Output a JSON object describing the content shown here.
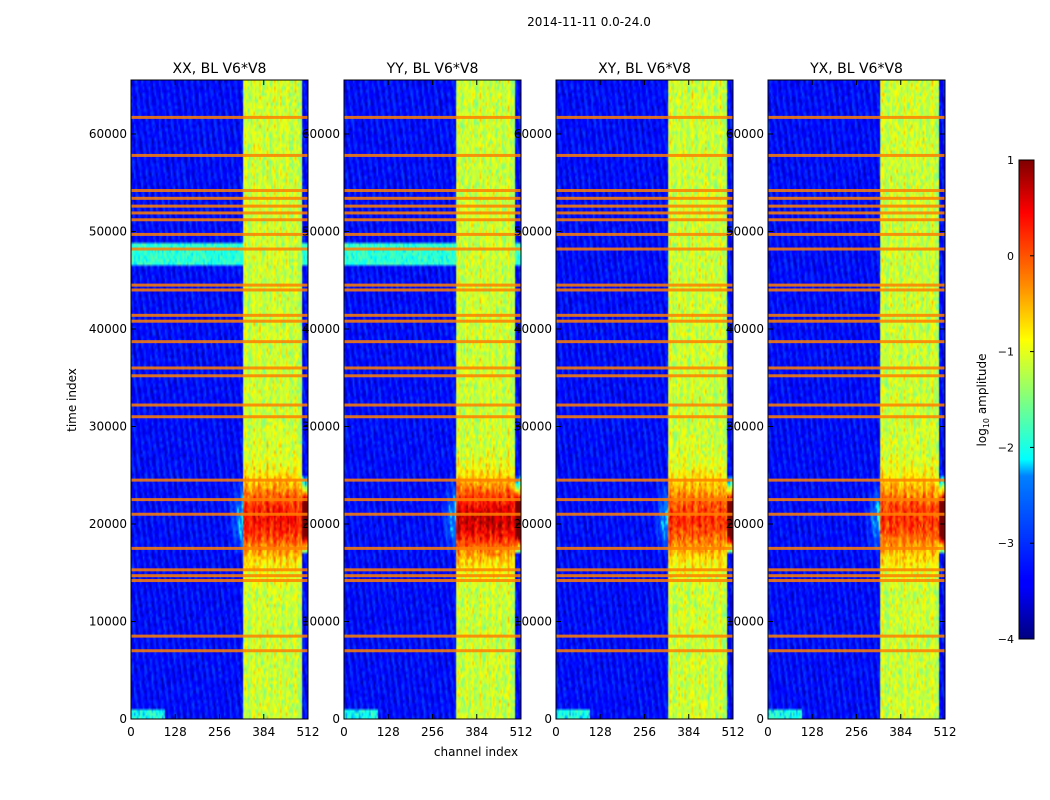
{
  "chart_data": {
    "type": "heatmap",
    "suptitle": "2014-11-11 0.0-24.0",
    "xlabel": "channel index",
    "ylabel": "time index",
    "xlim": [
      0,
      512
    ],
    "ylim": [
      0,
      65536
    ],
    "xticks": [
      0,
      128,
      256,
      384,
      512
    ],
    "yticks": [
      0,
      10000,
      20000,
      30000,
      40000,
      50000,
      60000
    ],
    "panels": [
      {
        "title": "XX, BL V6*V8",
        "pol": "XX",
        "peak_log10": 0.6
      },
      {
        "title": "YY, BL V6*V8",
        "pol": "YY",
        "peak_log10": 0.9
      },
      {
        "title": "XY, BL V6*V8",
        "pol": "XY",
        "peak_log10": 0.4
      },
      {
        "title": "YX, BL V6*V8",
        "pol": "YX",
        "peak_log10": 0.4
      }
    ],
    "band": {
      "channel_start": 325,
      "channel_end": 495,
      "stripe_channels": [
        332,
        355,
        372,
        395,
        415,
        432,
        452,
        475
      ]
    },
    "burst": {
      "time_start": 13000,
      "time_end": 29000,
      "peak_time": 20500
    },
    "flagged_time_rows": [
      7000,
      8500,
      14200,
      14700,
      15300,
      17500,
      21000,
      22500,
      24500,
      31000,
      32200,
      35200,
      36000,
      38700,
      40800,
      41400,
      44000,
      44500,
      48200,
      49700,
      51200,
      51900,
      52600,
      53400,
      54200,
      57800,
      61700
    ],
    "colorbar": {
      "label": "log₁₀ amplitude",
      "label_base": "log",
      "label_sub": "10",
      "label_rest": " amplitude",
      "range": [
        -4,
        1
      ],
      "ticks": [
        1,
        0,
        -1,
        -2,
        -3,
        -4
      ],
      "tick_labels": [
        "1",
        "0",
        "−1",
        "−2",
        "−3",
        "−4"
      ],
      "colormap": "jet"
    }
  }
}
